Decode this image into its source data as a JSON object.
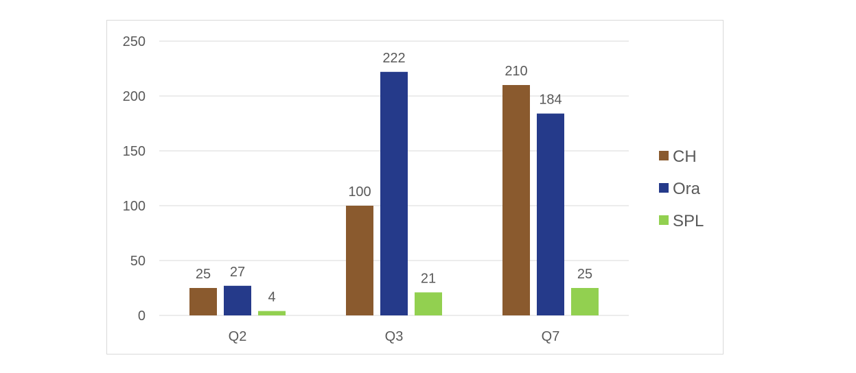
{
  "chart_data": {
    "type": "bar",
    "title": "",
    "xlabel": "",
    "ylabel": "",
    "categories": [
      "Q2",
      "Q3",
      "Q7"
    ],
    "series": [
      {
        "name": "CH",
        "values": [
          25,
          100,
          210
        ],
        "color": "#8a5a2e"
      },
      {
        "name": "Ora",
        "values": [
          27,
          222,
          184
        ],
        "color": "#253a8a"
      },
      {
        "name": "SPL",
        "values": [
          4,
          21,
          25
        ],
        "color": "#92d050"
      }
    ],
    "ylim": [
      0,
      250
    ],
    "yticks": [
      0,
      50,
      100,
      150,
      200,
      250
    ],
    "grid": true,
    "legend": "right",
    "data_labels": true
  }
}
